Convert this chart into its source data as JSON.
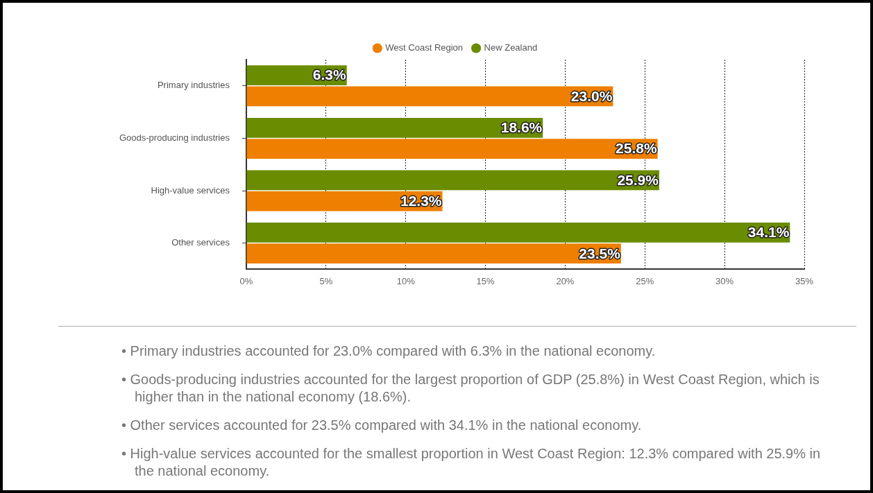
{
  "chart_data": {
    "type": "bar",
    "orientation": "horizontal",
    "categories": [
      "Primary industries",
      "Goods-producing industries",
      "High-value services",
      "Other services"
    ],
    "series": [
      {
        "name": "West Coast Region",
        "color": "#ee7f00",
        "values": [
          23.0,
          25.8,
          12.3,
          23.5
        ],
        "value_labels": [
          "23.0%",
          "25.8%",
          "12.3%",
          "23.5%"
        ]
      },
      {
        "name": "New Zealand",
        "color": "#6a8c00",
        "values": [
          6.3,
          18.6,
          25.9,
          34.1
        ],
        "value_labels": [
          "6.3%",
          "18.6%",
          "25.9%",
          "34.1%"
        ]
      }
    ],
    "xlim": [
      0,
      35
    ],
    "xticks": [
      {
        "value": 0,
        "label": "0%"
      },
      {
        "value": 5,
        "label": "5%"
      },
      {
        "value": 10,
        "label": "10%"
      },
      {
        "value": 15,
        "label": "15%"
      },
      {
        "value": 20,
        "label": "20%"
      },
      {
        "value": 25,
        "label": "25%"
      },
      {
        "value": 30,
        "label": "30%"
      },
      {
        "value": 35,
        "label": "35%"
      }
    ],
    "grid": "x",
    "legend": "top",
    "annotations": [
      "• Primary industries accounted for 23.0% compared with 6.3% in the national economy.",
      "• Goods-producing industries accounted for the largest proportion of GDP (25.8%) in West Coast Region, which is higher than in the national economy (18.6%).",
      "• Other services accounted for 23.5% compared with 34.1% in the national economy.",
      "• High-value services accounted for the smallest proportion in West Coast Region: 12.3% compared with 25.9% in the national economy."
    ]
  }
}
